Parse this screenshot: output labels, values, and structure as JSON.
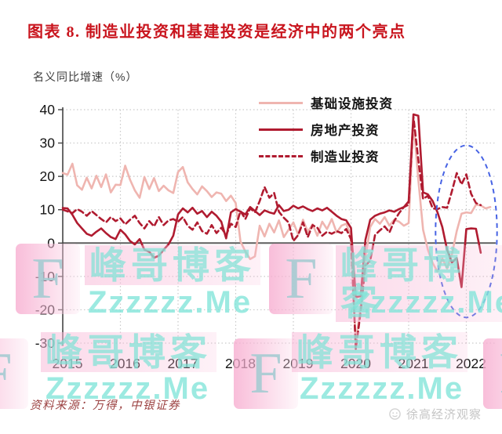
{
  "title": "图表 8.  制造业投资和基建投资是经济中的两个亮点",
  "source_note": "资料来源：万得，中银证券",
  "footer_brand": "徐高经济观察",
  "watermark": {
    "blog_name": "峰哥博客",
    "site": "Zzzzzz.Me",
    "letter": "F"
  },
  "chart_data": {
    "type": "line",
    "y_note": "名义同比增速（%）",
    "ylim": [
      -30,
      40
    ],
    "yticks": [
      40,
      30,
      20,
      10,
      0,
      -10,
      -20,
      -30
    ],
    "x_tick_labels": [
      "2015",
      "2016",
      "2017",
      "2018",
      "2019",
      "2020",
      "2021",
      "2022"
    ],
    "x_start": "2015-01",
    "x_end": "2022-06",
    "points_per_year": 12,
    "grid": "dotted",
    "legend_position": "top-right-inside",
    "series": [
      {
        "key": "infrastructure",
        "name": "基础设施投资",
        "color": "#efb5b0",
        "style": "solid",
        "values": [
          21.0,
          20.5,
          23.8,
          17.3,
          16.0,
          19.6,
          16.4,
          20.2,
          16.8,
          20.6,
          15.2,
          17.5,
          17.4,
          23.2,
          19.0,
          15.8,
          13.6,
          19.8,
          16.2,
          19.5,
          15.6,
          17.2,
          15.8,
          15.0,
          21.3,
          22.8,
          18.2,
          16.2,
          14.6,
          17.0,
          15.6,
          13.8,
          15.2,
          14.8,
          12.6,
          14.2,
          12.0,
          0.5,
          -2.5,
          -4.8,
          -4.0,
          5.2,
          2.0,
          5.8,
          3.2,
          6.8,
          1.8,
          4.0,
          6.2,
          2.6,
          7.0,
          3.4,
          5.6,
          2.2,
          6.4,
          4.2,
          7.2,
          3.2,
          5.2,
          5.8,
          2.0,
          -30.3,
          -18.5,
          -4.5,
          4.8,
          7.2,
          5.8,
          7.8,
          5.2,
          7.0,
          6.4,
          5.2,
          6.0,
          36.6,
          19.0,
          4.0,
          -2.0,
          -6.0,
          -8.6,
          -4.6,
          -7.6,
          -3.4,
          3.6,
          8.8,
          9.2,
          9.0,
          11.5,
          11.3,
          10.4,
          10.8
        ]
      },
      {
        "key": "real-estate",
        "name": "房地产投资",
        "color": "#b01b30",
        "style": "solid",
        "values": [
          10.5,
          10.4,
          8.5,
          6.0,
          4.4,
          2.8,
          2.2,
          3.4,
          4.4,
          3.0,
          1.8,
          1.2,
          4.0,
          2.6,
          0.6,
          -0.4,
          1.2,
          -2.0,
          -2.6,
          -4.4,
          -3.8,
          -2.0,
          -0.4,
          2.2,
          8.6,
          10.4,
          9.2,
          10.6,
          8.8,
          9.6,
          7.8,
          9.4,
          8.2,
          6.4,
          1.4,
          9.2,
          10.2,
          9.4,
          8.6,
          10.8,
          9.6,
          8.4,
          9.8,
          9.2,
          8.8,
          11.4,
          9.6,
          10.0,
          11.2,
          10.4,
          11.0,
          10.2,
          9.6,
          10.4,
          9.8,
          10.6,
          9.4,
          8.2,
          7.2,
          6.8,
          4.5,
          -16.2,
          -15.9,
          1.0,
          7.0,
          8.2,
          8.8,
          9.2,
          9.8,
          9.4,
          10.2,
          10.8,
          12.5,
          38.6,
          38.2,
          15.2,
          14.6,
          12.6,
          9.2,
          4.8,
          -2.0,
          -5.8,
          -4.5,
          -13.2,
          4.2,
          4.4,
          4.3,
          -2.9,
          null,
          null
        ]
      },
      {
        "key": "manufacturing",
        "name": "制造业投资",
        "color": "#b01b30",
        "style": "dashed",
        "values": [
          10.0,
          9.5,
          9.0,
          10.2,
          9.4,
          8.2,
          9.6,
          8.4,
          7.2,
          6.2,
          7.8,
          6.6,
          7.4,
          5.6,
          7.0,
          8.2,
          6.0,
          4.4,
          6.6,
          5.0,
          7.8,
          5.4,
          6.8,
          7.2,
          6.4,
          7.8,
          5.2,
          4.0,
          6.2,
          3.6,
          2.8,
          5.4,
          3.0,
          4.6,
          2.4,
          5.8,
          4.8,
          9.6,
          7.2,
          10.4,
          9.2,
          12.6,
          16.8,
          13.6,
          15.0,
          9.4,
          7.6,
          6.2,
          0.6,
          2.4,
          6.2,
          1.8,
          5.4,
          4.6,
          2.2,
          3.4,
          2.8,
          3.6,
          3.0,
          4.2,
          1.2,
          -31.8,
          -20.6,
          -6.7,
          -5.3,
          2.4,
          3.8,
          5.0,
          3.2,
          6.6,
          9.0,
          10.8,
          11.5,
          37.8,
          25.0,
          13.2,
          14.2,
          10.4,
          10.2,
          10.8,
          10.6,
          15.5,
          21.0,
          17.6,
          20.6,
          14.8,
          12.0,
          11.4,
          null,
          null
        ]
      }
    ],
    "annotation_ellipse": {
      "description": "blue dashed highlight around 2022 data",
      "center_point_index": 84,
      "center_value": 3.5,
      "rx_months": 6.4,
      "ry_value": 25.8,
      "color": "#4763e4"
    },
    "colors": {
      "zero_line": "#5f5f5f",
      "gridline": "#c9c9c9",
      "axis": "#444444",
      "tick_label": "#141414"
    }
  }
}
